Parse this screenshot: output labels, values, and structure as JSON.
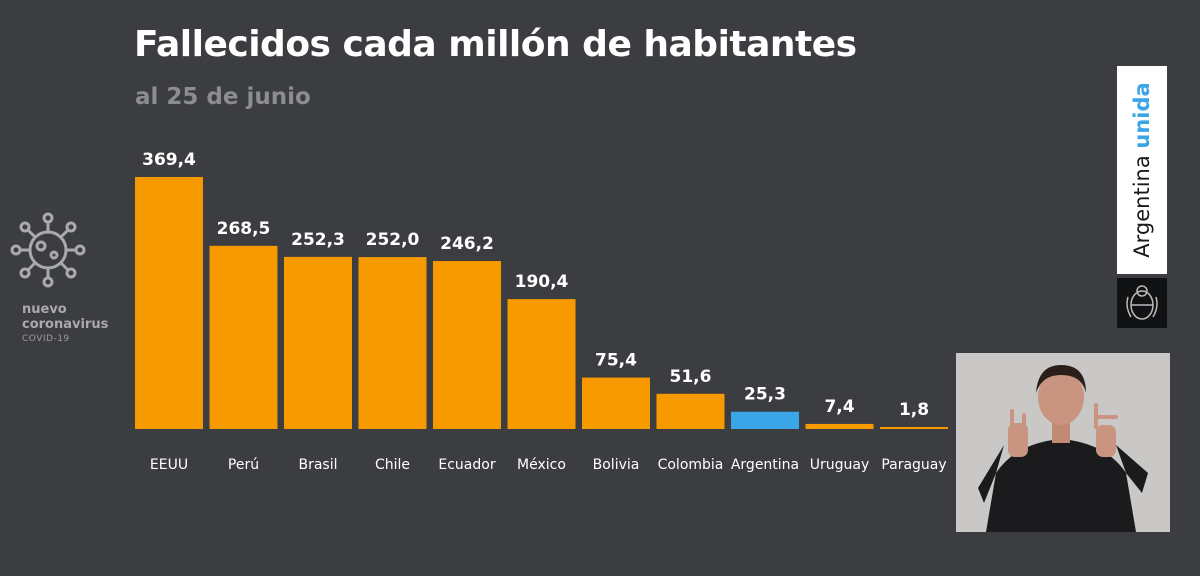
{
  "title": "Fallecidos cada millón de habitantes",
  "subtitle": "al 25 de junio",
  "logo": {
    "line1": "nuevo",
    "line2": "coronavirus",
    "line3": "COVID-19",
    "icon": "virus-icon"
  },
  "brand": {
    "word1": "Argentina",
    "word2": "unida",
    "emblem": "national-emblem-icon"
  },
  "colors": {
    "background": "#3c3d41",
    "bar": "#f79a00",
    "highlight": "#3aa6e8",
    "text": "#ffffff"
  },
  "chart_data": {
    "type": "bar",
    "title": "Fallecidos cada millón de habitantes",
    "subtitle": "al 25 de junio",
    "categories": [
      "EEUU",
      "Perú",
      "Brasil",
      "Chile",
      "Ecuador",
      "México",
      "Bolivia",
      "Colombia",
      "Argentina",
      "Uruguay",
      "Paraguay"
    ],
    "values": [
      369.4,
      268.5,
      252.3,
      252.0,
      246.2,
      190.4,
      75.4,
      51.6,
      25.3,
      7.4,
      1.8
    ],
    "value_labels": [
      "369,4",
      "268,5",
      "252,3",
      "252,0",
      "246,2",
      "190,4",
      "75,4",
      "51,6",
      "25,3",
      "7,4",
      "1,8"
    ],
    "highlight_category": "Argentina",
    "ylim": [
      0,
      369.4
    ],
    "xlabel": "",
    "ylabel": "",
    "grid": false
  }
}
